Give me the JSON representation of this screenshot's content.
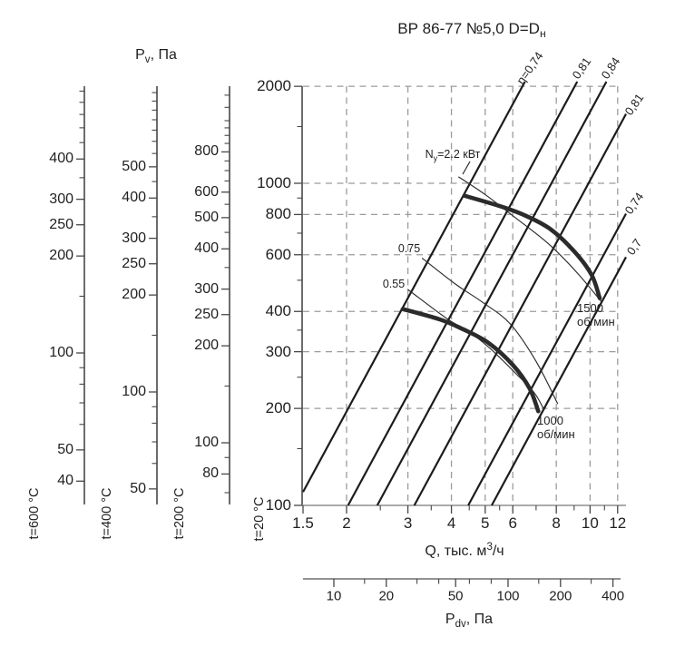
{
  "title": {
    "text": "ВР 86-77 №5,0 D=D",
    "sub": "н"
  },
  "colors": {
    "axis": "#474747",
    "x_axis_line": "#8f8f8f",
    "pdv_axis_line": "#6e6e6e",
    "grid": "#9c9c9c",
    "curve": "#2b2b2b",
    "thin_line": "#1c1c1c",
    "text": "#1f1f1f"
  },
  "chart_data": {
    "type": "line",
    "scales": "log-log",
    "title": "ВР 86-77 №5,0 D=Dн",
    "x_axis": {
      "label_text": "Q, тыс. м",
      "label_sup": "3",
      "label_rest": "/ч",
      "range": [
        1.5,
        12
      ],
      "major_ticks": [
        1.5,
        2,
        3,
        4,
        5,
        6,
        8,
        10,
        12
      ],
      "minor_ticks": [
        2.5,
        3.5,
        4.5,
        5.5,
        7,
        9,
        11
      ]
    },
    "y_axis": {
      "label_text": "P",
      "label_sub": "v",
      "label_rest": ", Па",
      "range": [
        100,
        2000
      ],
      "major_ticks": [
        100,
        200,
        300,
        400,
        600,
        800,
        1000,
        2000
      ],
      "minor_ticks": [
        150,
        250,
        350,
        500,
        700,
        900,
        1500
      ],
      "temperature_label": "t=20 °C"
    },
    "grid": {
      "x_lines": [
        2,
        3,
        4,
        5,
        6,
        8,
        10,
        12
      ],
      "y_lines": [
        200,
        300,
        400,
        600,
        800,
        1000,
        2000
      ]
    },
    "pressure_scales": [
      {
        "temperature_label": "t=600 °C",
        "labeled_ticks": [
          400,
          300,
          250,
          200,
          100,
          50,
          40
        ]
      },
      {
        "temperature_label": "t=400 °C",
        "labeled_ticks": [
          500,
          400,
          300,
          250,
          200,
          100,
          50
        ]
      },
      {
        "temperature_label": "t=200 °C",
        "labeled_ticks": [
          800,
          600,
          500,
          400,
          300,
          250,
          200,
          100,
          80
        ]
      }
    ],
    "dynamic_pressure_axis": {
      "label_text": "P",
      "label_sub": "dv",
      "label_rest": ", Па",
      "major_ticks": [
        10,
        20,
        50,
        100,
        200,
        400
      ],
      "minor_ticks": [
        15,
        30,
        40,
        60,
        80,
        150,
        300
      ]
    },
    "efficiency_lines": [
      {
        "label": "η=0,74",
        "eta": 0.74,
        "q_at_p100": 1.43
      },
      {
        "label": "0,81",
        "eta": 0.81,
        "q_at_p100": 2.02
      },
      {
        "label": "0,84",
        "eta": 0.84,
        "q_at_p100": 2.45
      },
      {
        "label": "0,81",
        "eta": 0.81,
        "q_at_p100": 3.13
      },
      {
        "label": "0,74",
        "eta": 0.74,
        "q_at_p100": 4.47
      },
      {
        "label": "0,7",
        "eta": 0.7,
        "q_at_p100": 5.22
      }
    ],
    "speed_curves": [
      {
        "rpm": 1500,
        "label_line1": "1500",
        "label_line2": "об/мин",
        "points_q_p": [
          [
            4.36,
            915
          ],
          [
            5.5,
            850
          ],
          [
            6.5,
            795
          ],
          [
            7.7,
            720
          ],
          [
            9.0,
            615
          ],
          [
            10.1,
            520
          ],
          [
            10.66,
            440
          ]
        ]
      },
      {
        "rpm": 1000,
        "label_line1": "1000",
        "label_line2": "об/мин",
        "points_q_p": [
          [
            2.9,
            407
          ],
          [
            3.7,
            378
          ],
          [
            4.3,
            353
          ],
          [
            5.1,
            320
          ],
          [
            6.0,
            273
          ],
          [
            6.7,
            231
          ],
          [
            7.1,
            196
          ]
        ]
      }
    ],
    "power_curves": [
      {
        "label_text": "N",
        "label_sub": "у",
        "label_rest": "=2.2 кВт",
        "points_q_p": [
          [
            4.2,
            1046
          ],
          [
            5.03,
            918
          ],
          [
            6.14,
            778
          ],
          [
            7.57,
            651
          ],
          [
            9.16,
            529
          ],
          [
            10.79,
            428
          ]
        ]
      },
      {
        "label": "0.75",
        "points_q_p": [
          [
            3.3,
            585
          ],
          [
            4.1,
            487
          ],
          [
            4.9,
            428
          ],
          [
            5.9,
            366
          ],
          [
            7.0,
            280
          ],
          [
            8.07,
            207
          ]
        ]
      },
      {
        "label": "0.55",
        "points_q_p": [
          [
            3.0,
            468
          ],
          [
            3.87,
            381
          ],
          [
            4.47,
            347
          ],
          [
            5.13,
            309
          ],
          [
            6.14,
            256
          ],
          [
            6.91,
            224
          ],
          [
            7.38,
            198
          ]
        ]
      }
    ]
  }
}
